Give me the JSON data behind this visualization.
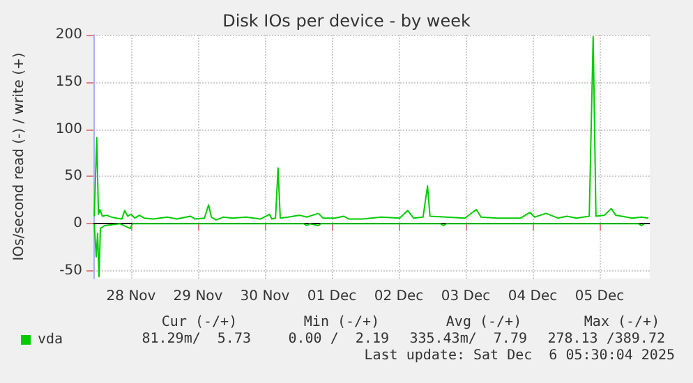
{
  "chart_data": {
    "type": "line",
    "title": "Disk IOs per device - by week",
    "ylabel": "IOs/second read (-) / write (+)",
    "xlim": [
      "2025-11-27T22:30",
      "2025-12-06T06:00"
    ],
    "xticks": [
      {
        "value": "2025-11-28T12:00",
        "label": "28 Nov"
      },
      {
        "value": "2025-11-29T12:00",
        "label": "29 Nov"
      },
      {
        "value": "2025-11-30T12:00",
        "label": "30 Nov"
      },
      {
        "value": "2025-12-01T12:00",
        "label": "01 Dec"
      },
      {
        "value": "2025-12-02T12:00",
        "label": "02 Dec"
      },
      {
        "value": "2025-12-03T12:00",
        "label": "03 Dec"
      },
      {
        "value": "2025-12-04T12:00",
        "label": "04 Dec"
      },
      {
        "value": "2025-12-05T12:00",
        "label": "05 Dec"
      }
    ],
    "ylim": [
      -58,
      200
    ],
    "yticks": [
      -50,
      0,
      50,
      100,
      150,
      200
    ],
    "grid": true,
    "legend": "bottom left",
    "marker": "none",
    "line_style": "solid",
    "series": [
      {
        "name": "vda",
        "color": "#00cc00",
        "x": [
          "2025-11-27T22:48",
          "2025-11-27T23:42",
          "2025-11-28T00:18",
          "2025-11-28T00:48",
          "2025-11-28T01:42",
          "2025-11-28T03:18",
          "2025-11-28T05:00",
          "2025-11-28T06:42",
          "2025-11-28T08:42",
          "2025-11-28T09:42",
          "2025-11-28T10:48",
          "2025-11-28T12:00",
          "2025-11-28T13:18",
          "2025-11-28T15:00",
          "2025-11-28T16:42",
          "2025-11-28T20:00",
          "2025-11-29T01:00",
          "2025-11-29T04:18",
          "2025-11-29T09:18",
          "2025-11-29T11:00",
          "2025-11-29T14:18",
          "2025-11-29T15:48",
          "2025-11-29T16:48",
          "2025-11-29T18:30",
          "2025-11-29T21:00",
          "2025-11-30T00:18",
          "2025-11-30T05:18",
          "2025-11-30T10:18",
          "2025-11-30T13:42",
          "2025-11-30T14:30",
          "2025-11-30T15:48",
          "2025-11-30T16:42",
          "2025-11-30T17:30",
          "2025-11-30T20:18",
          "2025-12-01T00:30",
          "2025-12-01T03:00",
          "2025-12-01T07:12",
          "2025-12-01T08:48",
          "2025-12-01T13:00",
          "2025-12-01T16:18",
          "2025-12-01T18:00",
          "2025-12-01T23:00",
          "2025-12-02T05:42",
          "2025-12-02T12:18",
          "2025-12-02T15:12",
          "2025-12-02T17:18",
          "2025-12-02T20:42",
          "2025-12-02T22:18",
          "2025-12-02T23:12",
          "2025-12-03T05:00",
          "2025-12-03T11:42",
          "2025-12-03T15:48",
          "2025-12-03T17:30",
          "2025-12-03T23:18",
          "2025-12-04T07:42",
          "2025-12-04T11:00",
          "2025-12-04T12:42",
          "2025-12-04T16:48",
          "2025-12-04T21:00",
          "2025-12-05T00:18",
          "2025-12-05T03:42",
          "2025-12-05T08:18",
          "2025-12-05T09:42",
          "2025-12-05T10:42",
          "2025-12-05T13:42",
          "2025-12-05T16:12",
          "2025-12-05T17:48",
          "2025-12-05T23:42",
          "2025-12-06T03:00",
          "2025-12-06T05:30"
        ],
        "values": [
          8,
          91,
          10,
          15,
          8,
          9,
          7,
          6,
          5,
          14,
          8,
          10,
          6,
          9,
          6,
          5,
          7,
          5,
          8,
          5,
          6,
          20,
          7,
          4,
          7,
          6,
          7,
          5,
          10,
          5,
          6,
          59,
          6,
          7,
          9,
          7,
          11,
          6,
          6,
          8,
          5,
          5,
          7,
          6,
          14,
          6,
          7,
          40,
          8,
          7,
          6,
          15,
          7,
          6,
          6,
          12,
          7,
          11,
          6,
          8,
          6,
          8,
          198,
          8,
          9,
          16,
          9,
          6,
          7,
          6
        ]
      },
      {
        "color": "#00cc00",
        "x": [
          "2025-11-27T22:48",
          "2025-11-27T23:30",
          "2025-11-28T00:00",
          "2025-11-28T00:30",
          "2025-11-28T01:00",
          "2025-11-28T02:30",
          "2025-11-28T08:00",
          "2025-11-28T11:42",
          "2025-11-28T12:30",
          "2025-12-01T02:00",
          "2025-12-01T03:00",
          "2025-12-01T04:00",
          "2025-12-01T07:12",
          "2025-12-01T08:00",
          "2025-12-03T03:00",
          "2025-12-03T04:00",
          "2025-12-03T05:00",
          "2025-12-06T02:00",
          "2025-12-06T03:00",
          "2025-12-06T04:00"
        ],
        "values": [
          0,
          -35,
          -10,
          -56,
          -5,
          -2,
          0,
          -5,
          0,
          0,
          -2,
          0,
          -2,
          0,
          0,
          -2,
          0,
          0,
          -2,
          0
        ]
      }
    ],
    "ref_lines": [
      {
        "axis": "y",
        "value": 0,
        "color": "#000000"
      }
    ],
    "annotations": [
      "Cur (-/+)",
      "Min (-/+)",
      "Avg (-/+)",
      "Max (-/+)",
      "81.29m/  5.73",
      "0.00 /  2.19",
      "335.43m/  7.79",
      "278.13 /389.72",
      "Last update: Sat Dec  6 05:30:04 2025"
    ]
  }
}
